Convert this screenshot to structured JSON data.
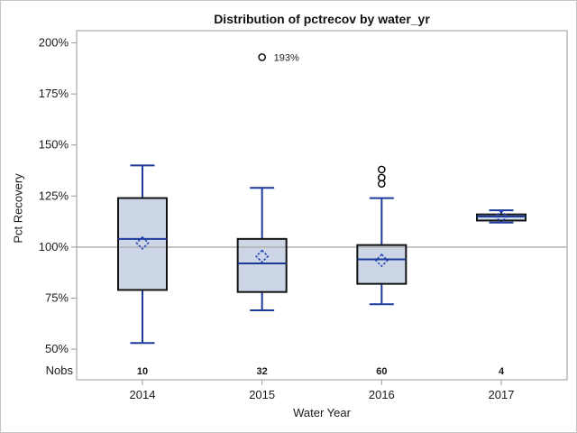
{
  "title": "Distribution of pctrecov by water_yr",
  "chart_data": {
    "type": "box",
    "title": "Distribution of pctrecov by water_yr",
    "xlabel": "Water Year",
    "ylabel": "Pct Recovery",
    "ylim": [
      35,
      206
    ],
    "yticks": [
      50,
      75,
      100,
      125,
      150,
      175,
      200
    ],
    "ytick_suffix": "%",
    "refline": 100,
    "grid": "off",
    "legend": "none",
    "categories": [
      "2014",
      "2015",
      "2016",
      "2017"
    ],
    "nobs_label": "Nobs",
    "nobs": [
      "10",
      "32",
      "60",
      "4"
    ],
    "boxes": [
      {
        "category": "2014",
        "n": 10,
        "whisker_low": 53,
        "q1": 79,
        "median": 104,
        "q3": 124,
        "whisker_high": 140,
        "mean": 102,
        "outliers": []
      },
      {
        "category": "2015",
        "n": 32,
        "whisker_low": 69,
        "q1": 78,
        "median": 92,
        "q3": 104,
        "whisker_high": 129,
        "mean": 95.5,
        "outliers": [
          {
            "value": 193,
            "label": "193%"
          }
        ]
      },
      {
        "category": "2016",
        "n": 60,
        "whisker_low": 72,
        "q1": 82,
        "median": 94,
        "q3": 101,
        "whisker_high": 124,
        "mean": 93.5,
        "outliers": [
          {
            "value": 138
          },
          {
            "value": 134
          },
          {
            "value": 131
          }
        ]
      },
      {
        "category": "2017",
        "n": 4,
        "whisker_low": 112,
        "q1": 113,
        "median": 115,
        "q3": 116,
        "whisker_high": 118,
        "mean": 115,
        "outliers": []
      }
    ],
    "colors": {
      "box_fill": "#ccd6e6",
      "box_edge": "#121212",
      "line": "#1d3a9b",
      "mean_marker": "#2444b5",
      "refline": "#ababab",
      "frame": "#9a9a9a",
      "outlier_stroke": "#000000",
      "text": "#1a1a1a"
    }
  }
}
